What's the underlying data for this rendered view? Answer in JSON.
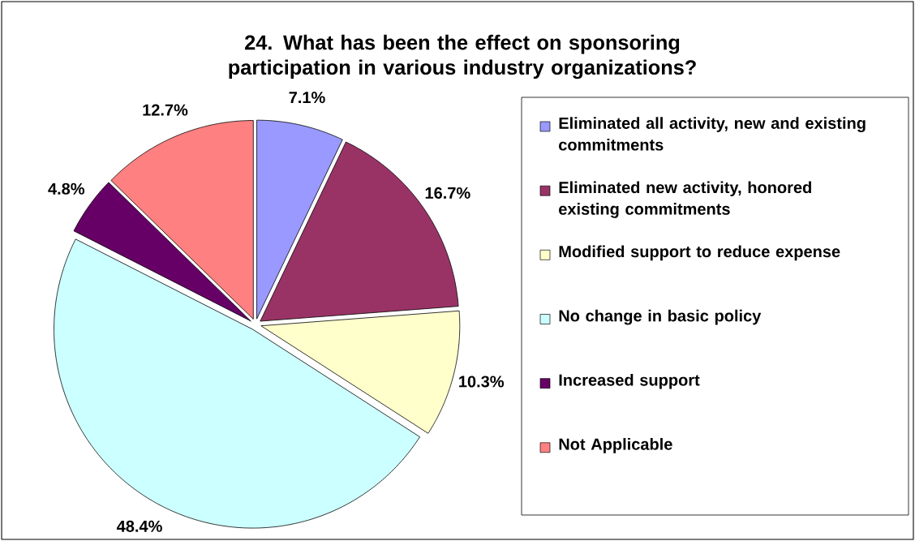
{
  "chart_data": {
    "type": "pie",
    "title": "24. What has been the effect on sponsoring participation in various industry organizations?",
    "categories": [
      "Eliminated all activity, new and existing commitments",
      "Eliminated new activity, honored existing commitments",
      "Modified support to reduce expense",
      "No change in basic policy",
      "Increased support",
      "Not Applicable"
    ],
    "values": [
      7.1,
      16.7,
      10.3,
      48.4,
      4.8,
      12.7
    ],
    "value_labels": [
      "7.1%",
      "16.7%",
      "10.3%",
      "48.4%",
      "4.8%",
      "12.7%"
    ],
    "colors": [
      "#9999ff",
      "#993366",
      "#ffffcc",
      "#ccffff",
      "#660066",
      "#ff8080"
    ],
    "legend": "right"
  }
}
